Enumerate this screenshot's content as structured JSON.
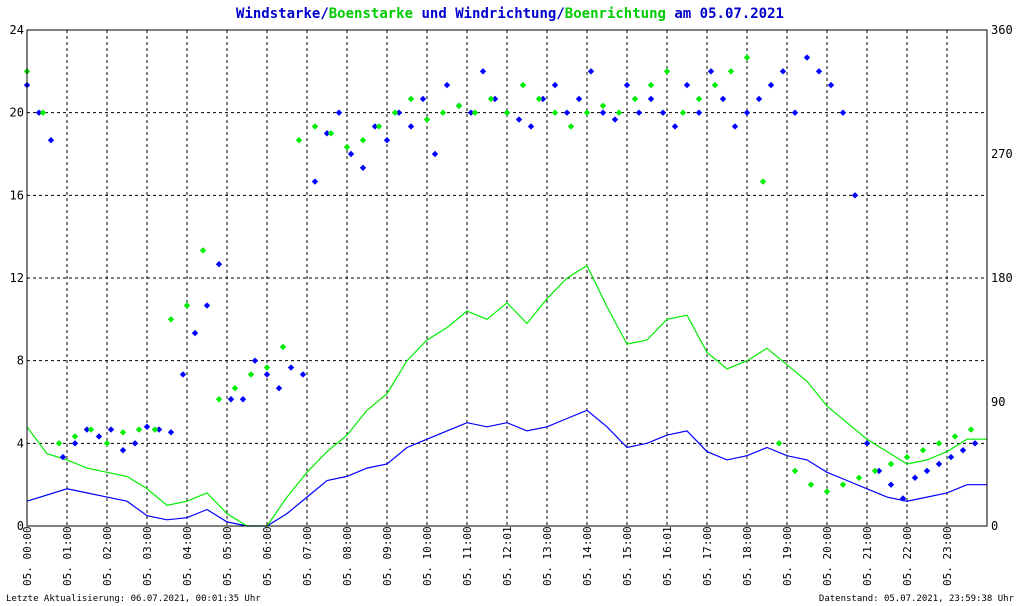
{
  "title": {
    "part1": "Windstarke",
    "sep1": "/",
    "part2": "Boenstarke",
    "part3": " und ",
    "part4": "Windrichtung",
    "sep2": "/",
    "part5": "Boenrichtung",
    "part6": " am 05.07.2021"
  },
  "colors": {
    "wind": "#0000ff",
    "gust": "#00ee00",
    "grid": "#000000",
    "frame": "#000000"
  },
  "footer": {
    "left": "Letzte Aktualisierung: 06.07.2021, 00:01:35 Uhr",
    "right": "Datenstand: 05.07.2021, 23:59:38 Uhr"
  },
  "chart_data": {
    "type": "line",
    "y_left": {
      "min": 0,
      "max": 24,
      "ticks": [
        "0",
        "4",
        "8",
        "12",
        "16",
        "20",
        "24"
      ]
    },
    "y_right": {
      "min": 0,
      "max": 360,
      "ticks": [
        "0",
        "90",
        "180",
        "270",
        "360"
      ]
    },
    "x_ticks": [
      "05. 00:00",
      "05. 01:00",
      "05. 02:00",
      "05. 03:00",
      "05. 04:00",
      "05. 05:00",
      "05. 06:00",
      "05. 07:00",
      "05. 08:00",
      "05. 09:00",
      "05. 10:00",
      "05. 11:00",
      "05. 12:01",
      "05. 13:00",
      "05. 14:00",
      "05. 15:00",
      "05. 16:01",
      "05. 17:00",
      "05. 18:00",
      "05. 19:00",
      "05. 20:00",
      "05. 21:00",
      "05. 22:00",
      "05. 23:00"
    ],
    "grid": true,
    "series": [
      {
        "name": "Windstarke",
        "axis": "left",
        "kind": "line",
        "color": "#0000ff",
        "x": [
          0,
          0.5,
          1,
          1.5,
          2,
          2.5,
          3,
          3.5,
          4,
          4.5,
          5,
          5.5,
          6,
          6.5,
          7,
          7.5,
          8,
          8.5,
          9,
          9.5,
          10,
          10.5,
          11,
          11.5,
          12,
          12.5,
          13,
          13.5,
          14,
          14.5,
          15,
          15.5,
          16,
          16.5,
          17,
          17.5,
          18,
          18.5,
          19,
          19.5,
          20,
          20.5,
          21,
          21.5,
          22,
          22.5,
          23,
          23.5,
          24
        ],
        "y": [
          1.2,
          1.5,
          1.8,
          1.6,
          1.4,
          1.2,
          0.5,
          0.3,
          0.4,
          0.8,
          0.2,
          0,
          0,
          0.6,
          1.4,
          2.2,
          2.4,
          2.8,
          3,
          3.8,
          4.2,
          4.6,
          5,
          4.8,
          5,
          4.6,
          4.8,
          5.2,
          5.6,
          4.8,
          3.8,
          4,
          4.4,
          4.6,
          3.6,
          3.2,
          3.4,
          3.8,
          3.4,
          3.2,
          2.6,
          2.2,
          1.8,
          1.4,
          1.2,
          1.4,
          1.6,
          2,
          2
        ]
      },
      {
        "name": "Boenstarke",
        "axis": "left",
        "kind": "line",
        "color": "#00ee00",
        "x": [
          0,
          0.5,
          1,
          1.5,
          2,
          2.5,
          3,
          3.5,
          4,
          4.5,
          5,
          5.5,
          6,
          6.5,
          7,
          7.5,
          8,
          8.5,
          9,
          9.5,
          10,
          10.5,
          11,
          11.5,
          12,
          12.5,
          13,
          13.5,
          14,
          14.5,
          15,
          15.5,
          16,
          16.5,
          17,
          17.5,
          18,
          18.5,
          19,
          19.5,
          20,
          20.5,
          21,
          21.5,
          22,
          22.5,
          23,
          23.5,
          24
        ],
        "y": [
          4.8,
          3.5,
          3.2,
          2.8,
          2.6,
          2.4,
          1.8,
          1,
          1.2,
          1.6,
          0.6,
          0,
          0,
          1.4,
          2.6,
          3.6,
          4.4,
          5.6,
          6.4,
          8,
          9,
          9.6,
          10.4,
          10,
          10.8,
          9.8,
          11,
          12,
          12.6,
          10.6,
          8.8,
          9,
          10,
          10.2,
          8.4,
          7.6,
          8,
          8.6,
          7.8,
          7,
          5.8,
          5,
          4.2,
          3.6,
          3,
          3.2,
          3.6,
          4.2,
          4.2
        ]
      },
      {
        "name": "Windrichtung",
        "axis": "right",
        "kind": "scatter",
        "color": "#0000ff",
        "x": [
          0,
          0.3,
          0.6,
          0.9,
          1.2,
          1.5,
          1.8,
          2.1,
          2.4,
          2.7,
          3,
          3.3,
          3.6,
          3.9,
          4.2,
          4.5,
          4.8,
          5.1,
          5.4,
          5.7,
          6,
          6.3,
          6.6,
          6.9,
          7.2,
          7.5,
          7.8,
          8.1,
          8.4,
          8.7,
          9,
          9.3,
          9.6,
          9.9,
          10.2,
          10.5,
          10.8,
          11.1,
          11.4,
          11.7,
          12,
          12.3,
          12.6,
          12.9,
          13.2,
          13.5,
          13.8,
          14.1,
          14.4,
          14.7,
          15,
          15.3,
          15.6,
          15.9,
          16.2,
          16.5,
          16.8,
          17.1,
          17.4,
          17.7,
          18,
          18.3,
          18.6,
          18.9,
          19.2,
          19.5,
          19.8,
          20.1,
          20.4,
          20.7,
          21,
          21.3,
          21.6,
          21.9,
          22.2,
          22.5,
          22.8,
          23.1,
          23.4,
          23.7
        ],
        "y": [
          320,
          300,
          280,
          50,
          60,
          70,
          65,
          70,
          55,
          60,
          72,
          70,
          68,
          110,
          140,
          160,
          190,
          92,
          92,
          120,
          110,
          100,
          115,
          110,
          250,
          285,
          300,
          270,
          260,
          290,
          280,
          300,
          290,
          310,
          270,
          320,
          305,
          300,
          330,
          310,
          300,
          295,
          290,
          310,
          320,
          300,
          310,
          330,
          300,
          295,
          320,
          300,
          310,
          300,
          290,
          320,
          300,
          330,
          310,
          290,
          300,
          310,
          320,
          330,
          300,
          340,
          330,
          320,
          300,
          240,
          60,
          40,
          30,
          20,
          35,
          40,
          45,
          50,
          55,
          60
        ]
      },
      {
        "name": "Boenrichtung",
        "axis": "right",
        "kind": "scatter",
        "color": "#00ee00",
        "x": [
          0,
          0.4,
          0.8,
          1.2,
          1.6,
          2,
          2.4,
          2.8,
          3.2,
          3.6,
          4,
          4.4,
          4.8,
          5.2,
          5.6,
          6,
          6.4,
          6.8,
          7.2,
          7.6,
          8,
          8.4,
          8.8,
          9.2,
          9.6,
          10,
          10.4,
          10.8,
          11.2,
          11.6,
          12,
          12.4,
          12.8,
          13.2,
          13.6,
          14,
          14.4,
          14.8,
          15.2,
          15.6,
          16,
          16.4,
          16.8,
          17.2,
          17.6,
          18,
          18.4,
          18.8,
          19.2,
          19.6,
          20,
          20.4,
          20.8,
          21.2,
          21.6,
          22,
          22.4,
          22.8,
          23.2,
          23.6
        ],
        "y": [
          330,
          300,
          60,
          65,
          70,
          60,
          68,
          70,
          70,
          150,
          160,
          200,
          92,
          100,
          110,
          115,
          130,
          280,
          290,
          285,
          275,
          280,
          290,
          300,
          310,
          295,
          300,
          305,
          300,
          310,
          300,
          320,
          310,
          300,
          290,
          300,
          305,
          300,
          310,
          320,
          330,
          300,
          310,
          320,
          330,
          340,
          250,
          60,
          40,
          30,
          25,
          30,
          35,
          40,
          45,
          50,
          55,
          60,
          65,
          70
        ]
      }
    ]
  }
}
